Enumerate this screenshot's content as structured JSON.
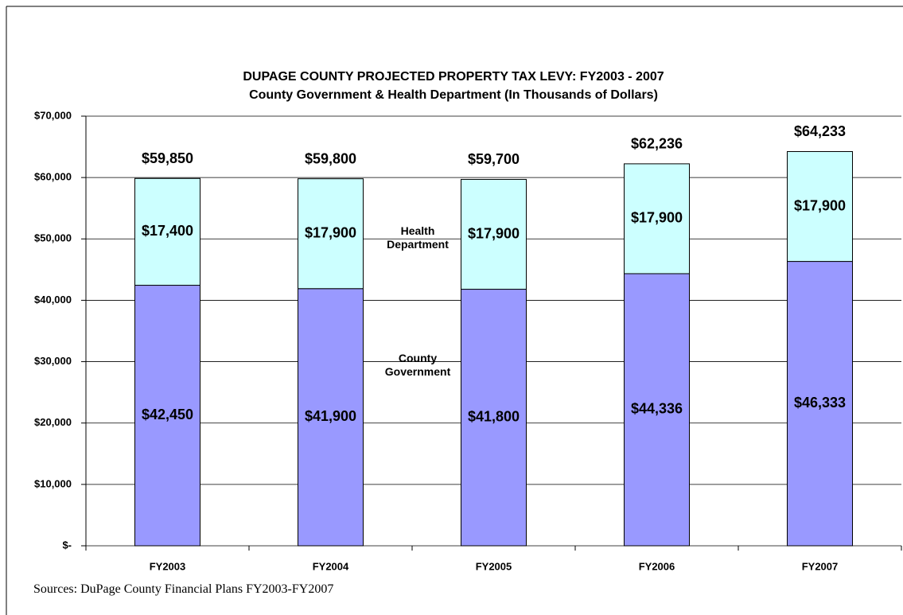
{
  "chart_data": {
    "type": "stacked_bar",
    "title": "DUPAGE COUNTY PROJECTED PROPERTY TAX LEVY: FY2003 - 2007",
    "subtitle": "County Government & Health Department (In Thousands of Dollars)",
    "categories": [
      "FY2003",
      "FY2004",
      "FY2005",
      "FY2006",
      "FY2007"
    ],
    "series": [
      {
        "name": "County Government",
        "color": "#9999ff",
        "values": [
          42450,
          41900,
          41800,
          44336,
          46333
        ],
        "value_labels": [
          "$42,450",
          "$41,900",
          "$41,800",
          "$44,336",
          "$46,333"
        ]
      },
      {
        "name": "Health Department",
        "color": "#ccffff",
        "values": [
          17400,
          17900,
          17900,
          17900,
          17900
        ],
        "value_labels": [
          "$17,400",
          "$17,900",
          "$17,900",
          "$17,900",
          "$17,900"
        ]
      }
    ],
    "total_labels": [
      "$59,850",
      "$59,800",
      "$59,700",
      "$62,236",
      "$64,233"
    ],
    "ylim": [
      0,
      70000
    ],
    "yticks": [
      {
        "value": 0,
        "label": "$-"
      },
      {
        "value": 10000,
        "label": "$10,000"
      },
      {
        "value": 20000,
        "label": "$20,000"
      },
      {
        "value": 30000,
        "label": "$30,000"
      },
      {
        "value": 40000,
        "label": "$40,000"
      },
      {
        "value": 50000,
        "label": "$50,000"
      },
      {
        "value": 60000,
        "label": "$60,000"
      },
      {
        "value": 70000,
        "label": "$70,000"
      }
    ],
    "grid": true,
    "source": "Sources: DuPage County Financial Plans FY2003-FY2007"
  }
}
